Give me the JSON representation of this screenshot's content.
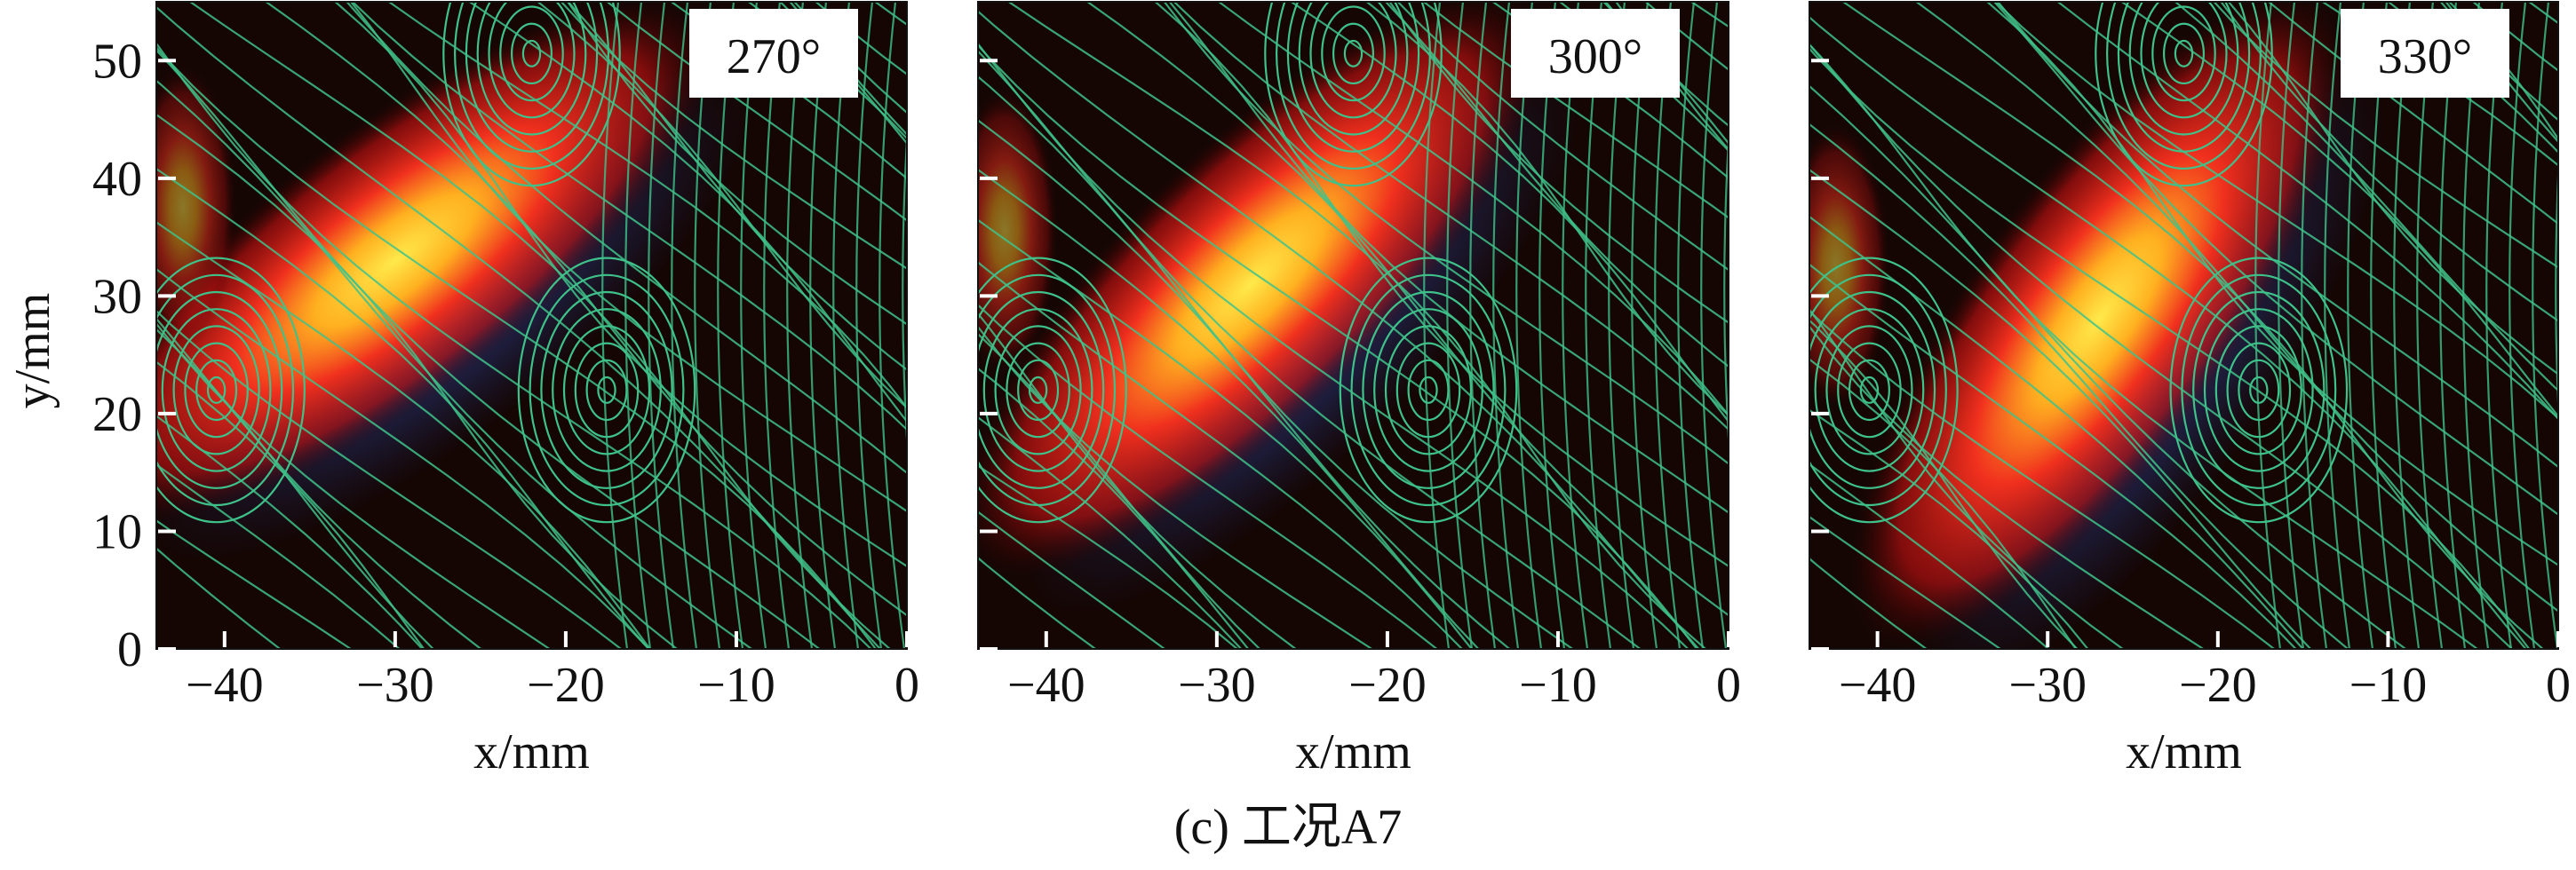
{
  "chart_data": [
    {
      "type": "heatmap",
      "annotation": "270°",
      "xlabel": "x/mm",
      "ylabel": "y/mm",
      "xlim": [
        -44,
        0
      ],
      "ylim": [
        0,
        55
      ],
      "xticks": [
        {
          "value": -40,
          "label": "−40"
        },
        {
          "value": -30,
          "label": "−30"
        },
        {
          "value": -20,
          "label": "−20"
        },
        {
          "value": -10,
          "label": "−10"
        },
        0
      ],
      "yticks": [
        0,
        10,
        20,
        30,
        40,
        50
      ]
    },
    {
      "type": "heatmap",
      "annotation": "300°",
      "xlabel": "x/mm",
      "xlim": [
        -44,
        0
      ],
      "ylim": [
        0,
        55
      ],
      "xticks": [
        {
          "value": -40,
          "label": "−40"
        },
        {
          "value": -30,
          "label": "−30"
        },
        {
          "value": -20,
          "label": "−20"
        },
        {
          "value": -10,
          "label": "−10"
        },
        0
      ]
    },
    {
      "type": "heatmap",
      "annotation": "330°",
      "xlabel": "x/mm",
      "xlim": [
        -44,
        0
      ],
      "ylim": [
        0,
        55
      ],
      "xticks": [
        {
          "value": -40,
          "label": "−40"
        },
        {
          "value": -30,
          "label": "−30"
        },
        {
          "value": -20,
          "label": "−20"
        },
        {
          "value": -10,
          "label": "−10"
        },
        0
      ]
    }
  ],
  "caption": "(c) 工况A7"
}
